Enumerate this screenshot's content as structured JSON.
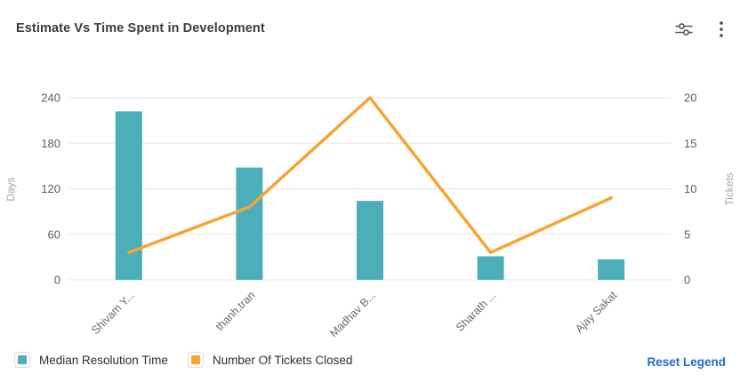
{
  "header": {
    "icons": {
      "settings": "sliders-icon",
      "more": "kebab-menu-icon"
    }
  },
  "chart_data": {
    "type": "combo",
    "title": "Estimate Vs Time Spent in Development",
    "categories": [
      "Shivam Y...",
      "thanh.tran",
      "Madhav B...",
      "Sharath ...",
      "Ajay Sakat"
    ],
    "series": [
      {
        "name": "Median Resolution Time",
        "type": "bar",
        "y_axis": "left",
        "color": "#4BAEB9",
        "values": [
          222,
          148,
          104,
          31,
          27
        ]
      },
      {
        "name": "Number Of Tickets Closed",
        "type": "line",
        "y_axis": "right",
        "color": "#F9A432",
        "values": [
          3,
          8,
          20,
          3,
          9
        ]
      }
    ],
    "left_axis": {
      "label": "Days",
      "ticks": [
        0,
        60,
        120,
        180,
        240
      ],
      "max": 240
    },
    "right_axis": {
      "label": "Tickets",
      "ticks": [
        0,
        5,
        10,
        15,
        20
      ],
      "max": 20
    },
    "grid": true,
    "legend_position": "bottom"
  },
  "legend": {
    "items": [
      {
        "label": "Median Resolution Time",
        "color": "#4BAEB9"
      },
      {
        "label": "Number Of Tickets Closed",
        "color": "#F9A432"
      }
    ],
    "reset_label": "Reset Legend"
  },
  "colors": {
    "link": "#2269D3",
    "grid_line": "#ECECEC",
    "title_text": "#3C3C3C",
    "tick_text": "#5C5C5C",
    "axis_name_text": "#A5A5A5",
    "x_label_text": "#6B6B6B",
    "icon": "#555555"
  }
}
